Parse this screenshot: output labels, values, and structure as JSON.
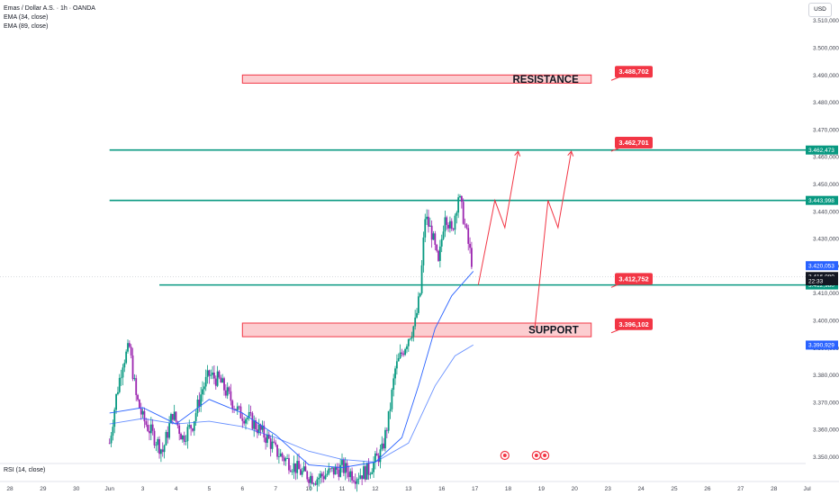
{
  "header": {
    "symbol_title": "Emas / Dollar A.S. · 1h · OANDA",
    "indicators": [
      "EMA (34, close)",
      "EMA (89, close)"
    ],
    "currency": "USD"
  },
  "rsi_label": "RSI (14, close)",
  "chart_data": {
    "type": "candlestick",
    "title": "Emas / Dollar A.S. · 1h · OANDA",
    "ylim": [
      3.3475,
      3.5175
    ],
    "y_ticks": [
      "3.350,000",
      "3.360,000",
      "3.370,000",
      "3.380,000",
      "3.390,000",
      "3.400,000",
      "3.410,000",
      "3.420,000",
      "3.430,000",
      "3.440,000",
      "3.450,000",
      "3.460,000",
      "3.470,000",
      "3.480,000",
      "3.490,000",
      "3.500,000",
      "3.510,000"
    ],
    "y_tick_values": [
      3.35,
      3.36,
      3.37,
      3.38,
      3.39,
      3.4,
      3.41,
      3.42,
      3.43,
      3.44,
      3.45,
      3.46,
      3.47,
      3.48,
      3.49,
      3.5,
      3.51
    ],
    "x_ticks": [
      "28",
      "29",
      "30",
      "Jun",
      "3",
      "4",
      "5",
      "6",
      "7",
      "10",
      "11",
      "12",
      "13",
      "16",
      "17",
      "18",
      "19",
      "20",
      "23",
      "24",
      "25",
      "26",
      "27",
      "28",
      "Jul"
    ],
    "x_tick_index": [
      0,
      1,
      2,
      3,
      4,
      5,
      6,
      7,
      8,
      9,
      10,
      11,
      12,
      13,
      14,
      15,
      16,
      17,
      18,
      19,
      20,
      21,
      22,
      23,
      24
    ],
    "price_series": [
      {
        "x": 3.0,
        "y": 3.355
      },
      {
        "x": 3.2,
        "y": 3.372
      },
      {
        "x": 3.4,
        "y": 3.385
      },
      {
        "x": 3.6,
        "y": 3.39
      },
      {
        "x": 3.8,
        "y": 3.372
      },
      {
        "x": 4.0,
        "y": 3.364
      },
      {
        "x": 4.3,
        "y": 3.358
      },
      {
        "x": 4.6,
        "y": 3.352
      },
      {
        "x": 4.9,
        "y": 3.366
      },
      {
        "x": 5.2,
        "y": 3.357
      },
      {
        "x": 5.5,
        "y": 3.362
      },
      {
        "x": 5.8,
        "y": 3.375
      },
      {
        "x": 6.0,
        "y": 3.38
      },
      {
        "x": 6.3,
        "y": 3.378
      },
      {
        "x": 6.6,
        "y": 3.372
      },
      {
        "x": 6.9,
        "y": 3.366
      },
      {
        "x": 7.2,
        "y": 3.364
      },
      {
        "x": 7.5,
        "y": 3.36
      },
      {
        "x": 7.8,
        "y": 3.356
      },
      {
        "x": 8.0,
        "y": 3.352
      },
      {
        "x": 8.4,
        "y": 3.348
      },
      {
        "x": 8.8,
        "y": 3.344
      },
      {
        "x": 9.2,
        "y": 3.342
      },
      {
        "x": 9.6,
        "y": 3.344
      },
      {
        "x": 10.0,
        "y": 3.346
      },
      {
        "x": 10.4,
        "y": 3.343
      },
      {
        "x": 10.8,
        "y": 3.345
      },
      {
        "x": 11.2,
        "y": 3.352
      },
      {
        "x": 11.4,
        "y": 3.364
      },
      {
        "x": 11.6,
        "y": 3.382
      },
      {
        "x": 11.8,
        "y": 3.388
      },
      {
        "x": 12.0,
        "y": 3.394
      },
      {
        "x": 12.2,
        "y": 3.399
      },
      {
        "x": 12.35,
        "y": 3.41
      },
      {
        "x": 12.5,
        "y": 3.438
      },
      {
        "x": 12.7,
        "y": 3.432
      },
      {
        "x": 12.9,
        "y": 3.42
      },
      {
        "x": 13.1,
        "y": 3.44
      },
      {
        "x": 13.3,
        "y": 3.432
      },
      {
        "x": 13.5,
        "y": 3.446
      },
      {
        "x": 13.65,
        "y": 3.438
      },
      {
        "x": 13.8,
        "y": 3.428
      },
      {
        "x": 13.95,
        "y": 3.419
      }
    ],
    "ema34": [
      {
        "x": 3.0,
        "y": 3.366
      },
      {
        "x": 4.0,
        "y": 3.368
      },
      {
        "x": 5.0,
        "y": 3.362
      },
      {
        "x": 6.0,
        "y": 3.371
      },
      {
        "x": 7.0,
        "y": 3.366
      },
      {
        "x": 8.0,
        "y": 3.358
      },
      {
        "x": 9.0,
        "y": 3.347
      },
      {
        "x": 10.0,
        "y": 3.346
      },
      {
        "x": 11.0,
        "y": 3.348
      },
      {
        "x": 11.8,
        "y": 3.357
      },
      {
        "x": 12.3,
        "y": 3.376
      },
      {
        "x": 12.8,
        "y": 3.397
      },
      {
        "x": 13.3,
        "y": 3.409
      },
      {
        "x": 13.95,
        "y": 3.418
      }
    ],
    "ema89": [
      {
        "x": 3.0,
        "y": 3.362
      },
      {
        "x": 4.0,
        "y": 3.364
      },
      {
        "x": 5.0,
        "y": 3.362
      },
      {
        "x": 6.0,
        "y": 3.363
      },
      {
        "x": 7.0,
        "y": 3.361
      },
      {
        "x": 8.0,
        "y": 3.357
      },
      {
        "x": 9.0,
        "y": 3.352
      },
      {
        "x": 10.0,
        "y": 3.349
      },
      {
        "x": 11.0,
        "y": 3.348
      },
      {
        "x": 12.0,
        "y": 3.355
      },
      {
        "x": 12.8,
        "y": 3.376
      },
      {
        "x": 13.4,
        "y": 3.387
      },
      {
        "x": 13.95,
        "y": 3.391
      }
    ],
    "zones": [
      {
        "label": "RESISTANCE",
        "top": 3.49,
        "bottom": 3.487,
        "from": 7.0,
        "to": 17.5,
        "callout": "3.488,702"
      },
      {
        "label": "SUPPORT",
        "top": 3.399,
        "bottom": 3.394,
        "from": 7.0,
        "to": 17.5,
        "callout": "3.396,102"
      }
    ],
    "levels": [
      {
        "y": 3.462473,
        "from": 3.0,
        "color": "#089981",
        "tag": "3.462,473"
      },
      {
        "y": 3.443998,
        "from": 3.0,
        "color": "#089981",
        "tag": "3.443,998"
      },
      {
        "y": 3.41298,
        "from": 4.5,
        "color": "#089981",
        "tag": "3.412,980"
      }
    ],
    "callouts": [
      {
        "text": "3.488,702",
        "y": 3.488702
      },
      {
        "text": "3.462,701",
        "y": 3.462701
      },
      {
        "text": "3.412,752",
        "y": 3.412752
      },
      {
        "text": "3.396,102",
        "y": 3.396102
      }
    ],
    "price_tags": [
      {
        "text": "3.420,053",
        "y": 3.420053,
        "color": "#2962ff"
      },
      {
        "text": "3.416,080",
        "y": 3.41608,
        "color": "#131722"
      },
      {
        "text": "22:33",
        "y": 3.4145,
        "color": "#131722"
      },
      {
        "text": "3.390,929",
        "y": 3.390929,
        "color": "#2962ff"
      }
    ],
    "projection": [
      [
        {
          "x": 14.1,
          "y": 3.413
        },
        {
          "x": 14.6,
          "y": 3.444
        },
        {
          "x": 14.9,
          "y": 3.434
        },
        {
          "x": 15.3,
          "y": 3.462
        }
      ],
      [
        {
          "x": 15.8,
          "y": 3.397
        },
        {
          "x": 16.2,
          "y": 3.444
        },
        {
          "x": 16.5,
          "y": 3.434
        },
        {
          "x": 16.9,
          "y": 3.462
        }
      ]
    ],
    "event_markers": [
      {
        "x": 14.9
      },
      {
        "x": 15.85
      },
      {
        "x": 16.1
      }
    ]
  }
}
